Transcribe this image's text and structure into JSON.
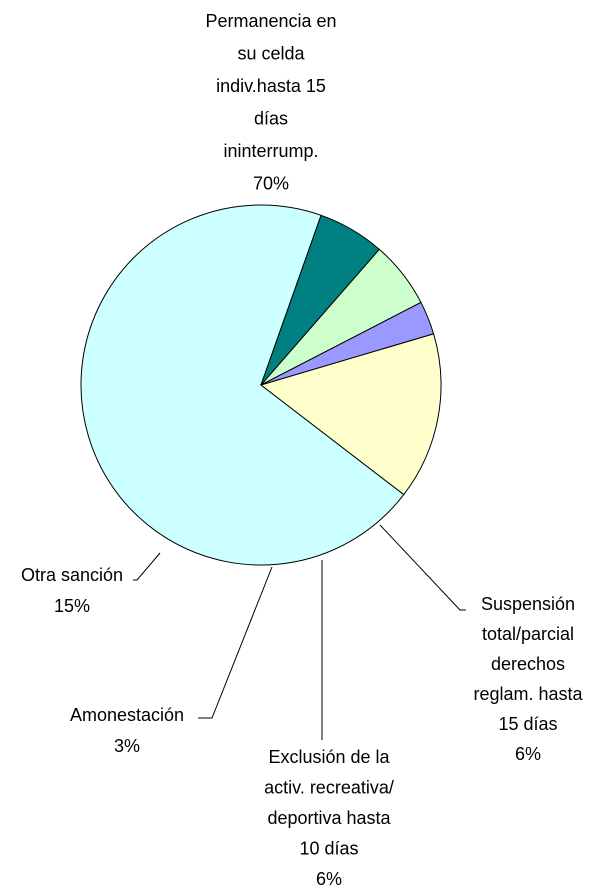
{
  "chart_data": {
    "type": "pie",
    "categories": [
      [
        "Permanencia en",
        "su celda",
        "indiv.hasta 15",
        "días",
        "ininterrump."
      ],
      [
        "Suspensión",
        "total/parcial",
        "derechos",
        "reglam. hasta",
        "15 días"
      ],
      [
        "Exclusión de la",
        "activ. recreativa/",
        "deportiva hasta",
        "10 días"
      ],
      [
        "Amonestación"
      ],
      [
        "Otra sanción"
      ]
    ],
    "values": [
      70,
      6,
      6,
      3,
      15
    ],
    "value_labels": [
      "70%",
      "6%",
      "6%",
      "3%",
      "15%"
    ],
    "colors": [
      "#ccffff",
      "#008080",
      "#ccffcc",
      "#9999ff",
      "#ffffcc"
    ]
  }
}
